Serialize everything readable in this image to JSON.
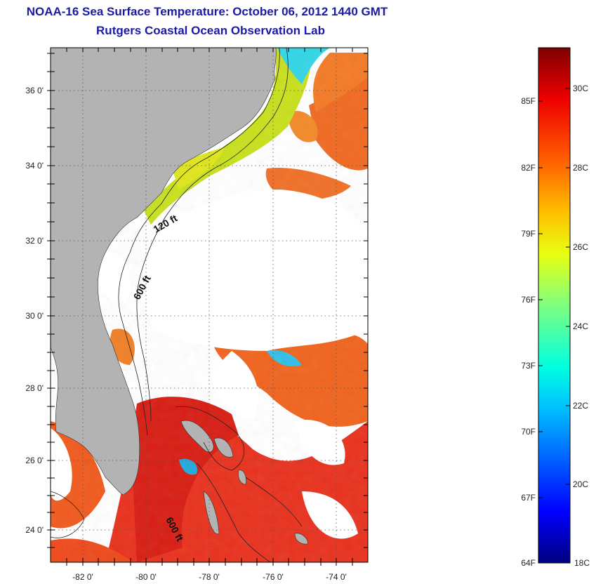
{
  "title": {
    "line1": "NOAA-16 Sea Surface Temperature:  October 06, 2012 1440 GMT",
    "line2": "Rutgers Coastal Ocean Observation Lab"
  },
  "map": {
    "lon_range": [
      -83,
      -73
    ],
    "lat_range": [
      23,
      37
    ],
    "lon_ticks": [
      "-82 0'",
      "-80 0'",
      "-78 0'",
      "-76 0'",
      "-74 0'"
    ],
    "lat_ticks": [
      "36 0'",
      "34 0'",
      "32 0'",
      "30 0'",
      "28 0'",
      "26 0'",
      "24 0'"
    ],
    "contour_labels": [
      "120 ft",
      "600 ft",
      "600 ft"
    ],
    "land_color": "#b3b3b3"
  },
  "colorbar": {
    "f_labels": [
      "85F",
      "82F",
      "79F",
      "76F",
      "73F",
      "70F",
      "67F",
      "64F"
    ],
    "c_labels": [
      "30C",
      "28C",
      "26C",
      "24C",
      "22C",
      "20C",
      "18C"
    ],
    "range_c": [
      18,
      31
    ]
  }
}
